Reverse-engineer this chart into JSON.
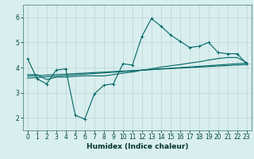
{
  "xlabel": "Humidex (Indice chaleur)",
  "bg_color": "#d9eeee",
  "grid_color": "#c2d9d9",
  "line_color": "#006666",
  "xlim": [
    -0.5,
    23.5
  ],
  "ylim": [
    1.5,
    6.5
  ],
  "yticks": [
    2,
    3,
    4,
    5,
    6
  ],
  "xticks": [
    0,
    1,
    2,
    3,
    4,
    5,
    6,
    7,
    8,
    9,
    10,
    11,
    12,
    13,
    14,
    15,
    16,
    17,
    18,
    19,
    20,
    21,
    22,
    23
  ],
  "main_line_x": [
    0,
    1,
    2,
    3,
    4,
    5,
    6,
    7,
    8,
    9,
    10,
    11,
    12,
    13,
    14,
    15,
    16,
    17,
    18,
    19,
    20,
    21,
    22,
    23
  ],
  "main_line_y": [
    4.35,
    3.55,
    3.35,
    3.9,
    3.95,
    2.1,
    1.95,
    2.95,
    3.3,
    3.35,
    4.15,
    4.1,
    5.25,
    5.95,
    5.65,
    5.3,
    5.05,
    4.8,
    4.85,
    5.0,
    4.6,
    4.55,
    4.55,
    4.15
  ],
  "line2_x": [
    0,
    1,
    2,
    3,
    4,
    5,
    6,
    7,
    8,
    9,
    10,
    11,
    12,
    13,
    14,
    15,
    16,
    17,
    18,
    19,
    20,
    21,
    22,
    23
  ],
  "line2_y": [
    3.72,
    3.72,
    3.52,
    3.62,
    3.62,
    3.65,
    3.67,
    3.67,
    3.67,
    3.72,
    3.78,
    3.82,
    3.9,
    3.95,
    4.02,
    4.07,
    4.12,
    4.18,
    4.23,
    4.3,
    4.36,
    4.4,
    4.4,
    4.2
  ],
  "line3_x": [
    0,
    23
  ],
  "line3_y": [
    3.58,
    4.18
  ],
  "line4_x": [
    0,
    23
  ],
  "line4_y": [
    3.66,
    4.12
  ]
}
